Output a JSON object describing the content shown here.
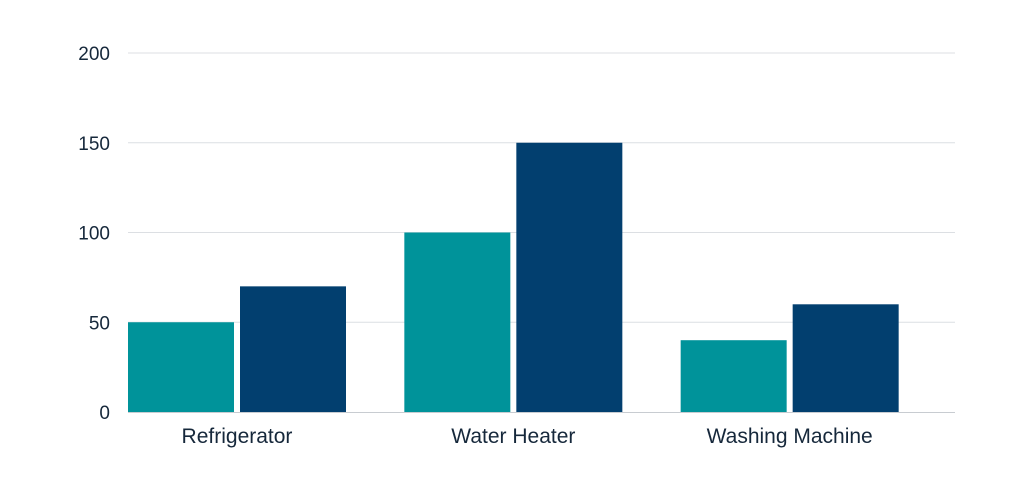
{
  "chart_data": {
    "type": "bar",
    "title": "",
    "xlabel": "",
    "ylabel": "",
    "categories": [
      "Refrigerator",
      "Water Heater",
      "Washing Machine"
    ],
    "series": [
      {
        "color": "#00939a",
        "values": [
          50,
          100,
          40
        ]
      },
      {
        "color": "#023f6f",
        "values": [
          70,
          150,
          60
        ]
      }
    ],
    "ylim": [
      0,
      200
    ],
    "yticks": [
      0,
      50,
      100,
      150,
      200
    ],
    "grid": true,
    "legend": "none"
  }
}
